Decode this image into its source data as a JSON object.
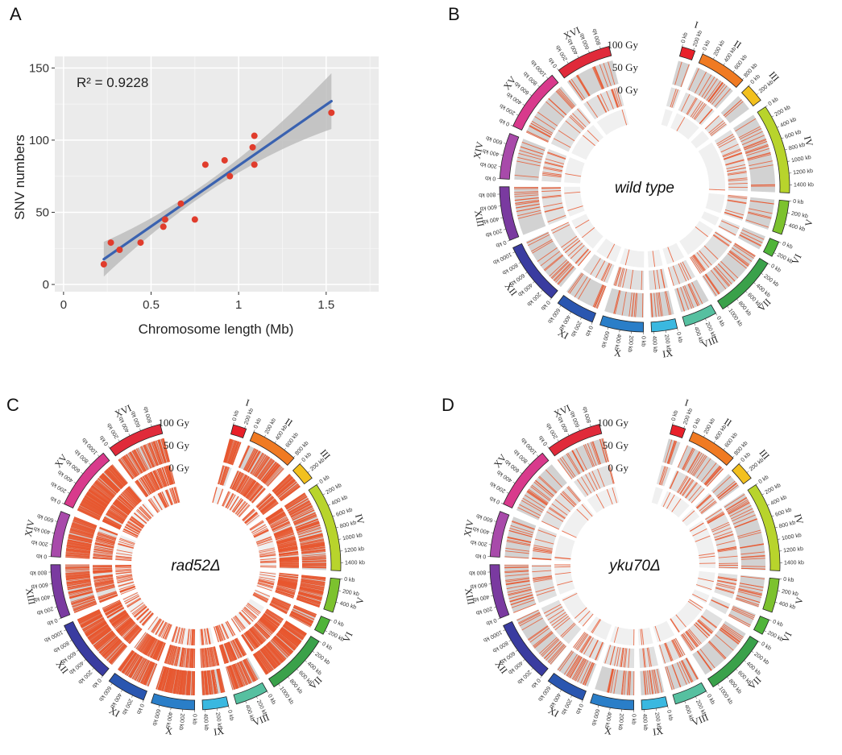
{
  "panels": [
    "A",
    "B",
    "C",
    "D"
  ],
  "chart_data": [
    {
      "type": "scatter",
      "panel": "A",
      "xlabel": "Chromosome length (Mb)",
      "ylabel": "SNV numbers",
      "xlim": [
        -0.05,
        1.8
      ],
      "ylim": [
        -5,
        158
      ],
      "xticks": [
        "0",
        "0.5",
        "1",
        "1.5"
      ],
      "yticks": [
        "0",
        "50",
        "100",
        "150"
      ],
      "grid": true,
      "annotation": "R² = 0.9228",
      "colors": {
        "points": "#e03c2c",
        "fit": "#3a62b0",
        "band": "#bdbdbd",
        "panel": "#ebebeb"
      },
      "x": [
        0.23,
        0.27,
        0.32,
        0.44,
        0.57,
        0.58,
        0.67,
        0.75,
        0.81,
        0.92,
        0.95,
        1.08,
        1.09,
        1.09,
        1.53
      ],
      "y": [
        14,
        29,
        24,
        29,
        40,
        45,
        56,
        45,
        83,
        86,
        75,
        95,
        103,
        83,
        119
      ],
      "fit": {
        "x": [
          0.23,
          1.53
        ],
        "y": [
          17.5,
          127
        ]
      }
    },
    {
      "type": "circos",
      "panel": "B",
      "center_label": "wild type",
      "rings": [
        "100 Gy",
        "50 Gy",
        "0 Gy"
      ],
      "density": [
        4,
        3,
        0.4
      ]
    },
    {
      "type": "circos",
      "panel": "C",
      "center_label": "rad52Δ",
      "rings": [
        "100 Gy",
        "50 Gy",
        "0 Gy"
      ],
      "density": [
        40,
        26,
        8
      ]
    },
    {
      "type": "circos",
      "panel": "D",
      "center_label": "yku70Δ",
      "rings": [
        "100 Gy",
        "50 Gy",
        "0 Gy"
      ],
      "density": [
        6,
        4,
        1
      ]
    }
  ],
  "chromosomes": [
    {
      "name": "I",
      "kb": 230,
      "color": "#e8202a",
      "ticks": [
        "0 kb",
        "200 kb"
      ]
    },
    {
      "name": "II",
      "kb": 813,
      "color": "#f07a22",
      "ticks": [
        "0 kb",
        "200 kb",
        "400 kb",
        "600 kb",
        "800 kb"
      ]
    },
    {
      "name": "III",
      "kb": 317,
      "color": "#f2c01e",
      "ticks": [
        "0 kb",
        "200 kb"
      ]
    },
    {
      "name": "IV",
      "kb": 1532,
      "color": "#b8d42c",
      "ticks": [
        "0 kb",
        "200 kb",
        "400 kb",
        "600 kb",
        "800 kb",
        "1000 kb",
        "1200 kb",
        "1400 kb"
      ]
    },
    {
      "name": "V",
      "kb": 577,
      "color": "#7cc22e",
      "ticks": [
        "0 kb",
        "200 kb",
        "400 kb"
      ]
    },
    {
      "name": "VI",
      "kb": 270,
      "color": "#50b43a",
      "ticks": [
        "0 kb",
        "200 kb"
      ]
    },
    {
      "name": "VII",
      "kb": 1091,
      "color": "#3aa14a",
      "ticks": [
        "0 kb",
        "200 kb",
        "400 kb",
        "600 kb",
        "800 kb",
        "1000 kb"
      ]
    },
    {
      "name": "VIII",
      "kb": 563,
      "color": "#56c0a0",
      "ticks": [
        "0 kb",
        "200 kb",
        "400 kb"
      ]
    },
    {
      "name": "IX",
      "kb": 440,
      "color": "#3ab8e0",
      "ticks": [
        "0 kb",
        "200 kb",
        "400 kb"
      ]
    },
    {
      "name": "X",
      "kb": 745,
      "color": "#2a7ec8",
      "ticks": [
        "0 kb",
        "200 kb",
        "400 kb",
        "600 kb"
      ]
    },
    {
      "name": "XI",
      "kb": 667,
      "color": "#2a56b0",
      "ticks": [
        "0 kb",
        "200 kb",
        "400 kb",
        "600 kb"
      ]
    },
    {
      "name": "XII",
      "kb": 1078,
      "color": "#3a3ca0",
      "ticks": [
        "0 kb",
        "200 kb",
        "400 kb",
        "600 kb",
        "800 kb",
        "1000 kb"
      ]
    },
    {
      "name": "XIII",
      "kb": 924,
      "color": "#7a3aa0",
      "ticks": [
        "0 kb",
        "200 kb",
        "400 kb",
        "600 kb",
        "800 kb"
      ]
    },
    {
      "name": "XIV",
      "kb": 784,
      "color": "#a84aaa",
      "ticks": [
        "0 kb",
        "200 kb",
        "400 kb",
        "600 kb"
      ]
    },
    {
      "name": "XV",
      "kb": 1091,
      "color": "#d83a8c",
      "ticks": [
        "0 kb",
        "200 kb",
        "400 kb",
        "600 kb",
        "800 kb",
        "1000 kb"
      ]
    },
    {
      "name": "XVI",
      "kb": 948,
      "color": "#e02a3a",
      "ticks": [
        "0 kb",
        "200 kb",
        "400 kb",
        "600 kb",
        "800 kb"
      ]
    }
  ]
}
